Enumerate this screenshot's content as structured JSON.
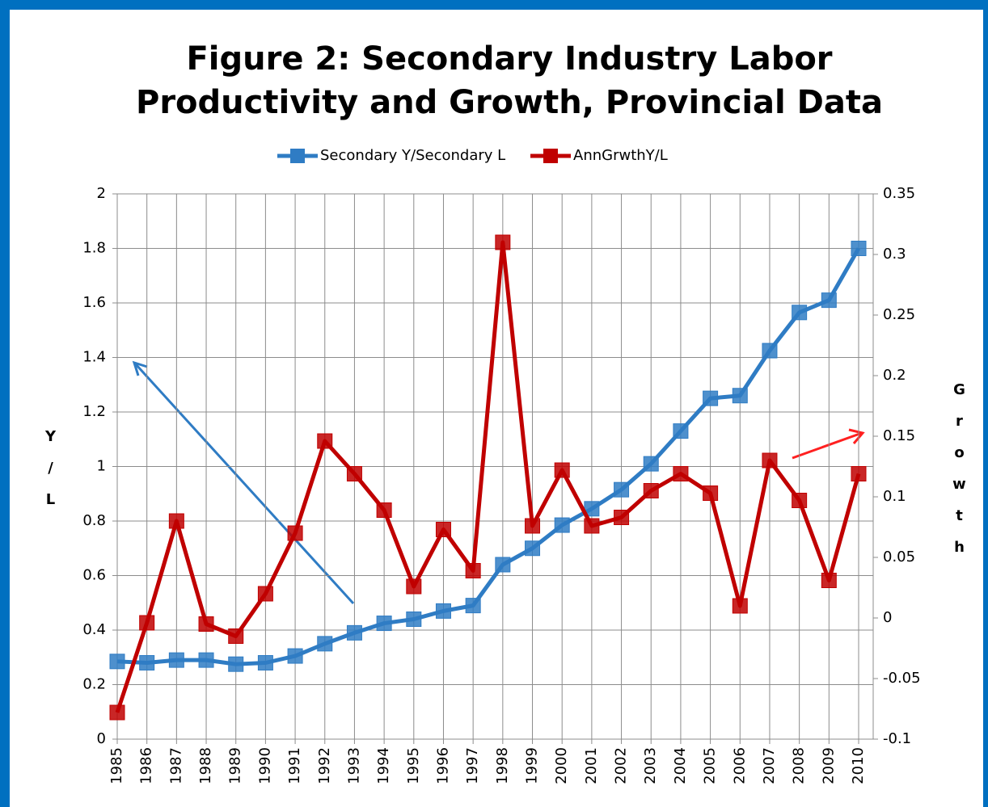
{
  "chart_data": {
    "type": "line",
    "title": "Figure 2: Secondary Industry Labor Productivity and Growth, Provincial Data",
    "y_label": "Y/L",
    "y2_label": "Growth",
    "categories": [
      "1985",
      "1986",
      "1987",
      "1988",
      "1989",
      "1990",
      "1991",
      "1992",
      "1993",
      "1994",
      "1995",
      "1996",
      "1997",
      "1998",
      "1999",
      "2000",
      "2001",
      "2002",
      "2003",
      "2004",
      "2005",
      "2006",
      "2007",
      "2008",
      "2009",
      "2010"
    ],
    "series": [
      {
        "name": "Secondary Y/Secondary L",
        "color": "#2f7cc4",
        "values": [
          0.285,
          0.28,
          0.29,
          0.29,
          0.275,
          0.28,
          0.305,
          0.35,
          0.39,
          0.425,
          0.44,
          0.47,
          0.49,
          0.64,
          0.7,
          0.785,
          0.845,
          0.915,
          1.01,
          1.13,
          1.25,
          1.26,
          1.425,
          1.565,
          1.61,
          1.8
        ]
      },
      {
        "name": "AnnGrwthY/L",
        "color": "#c00000",
        "axis": "y2",
        "values": [
          -0.078,
          -0.004,
          0.08,
          -0.005,
          -0.015,
          0.02,
          0.07,
          0.146,
          0.119,
          0.089,
          0.026,
          0.073,
          0.039,
          0.31,
          0.076,
          0.122,
          0.076,
          0.083,
          0.105,
          0.119,
          0.103,
          0.01,
          0.13,
          0.097,
          0.031,
          0.119
        ]
      }
    ],
    "ylim": [
      0,
      2
    ],
    "yticks": [
      0,
      0.2,
      0.4,
      0.6,
      0.8,
      1,
      1.2,
      1.4,
      1.6,
      1.8,
      2
    ],
    "y2lim": [
      -0.1,
      0.35
    ],
    "y2ticks": [
      -0.1,
      -0.05,
      0,
      0.05,
      0.1,
      0.15,
      0.2,
      0.25,
      0.3,
      0.35
    ],
    "grid": true,
    "legend": "top"
  }
}
